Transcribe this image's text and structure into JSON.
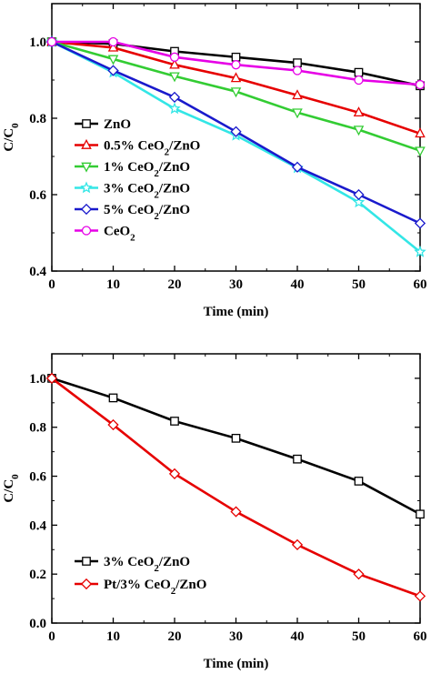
{
  "chart_data": [
    {
      "type": "line",
      "title": "",
      "xlabel": "Time (min)",
      "ylabel": "C/C",
      "ylabel_sub": "0",
      "xlim": [
        0,
        60
      ],
      "ylim": [
        0.4,
        1.1
      ],
      "xticks": [
        "0",
        "10",
        "20",
        "30",
        "40",
        "50",
        "60"
      ],
      "yticks": [
        "0.4",
        "0.6",
        "0.8",
        "1.0"
      ],
      "x": [
        0,
        10,
        20,
        30,
        40,
        50,
        60
      ],
      "grid": false,
      "legend_position": "bottom-left",
      "series": [
        {
          "name": "ZnO",
          "name_main": "ZnO",
          "name_sub": "",
          "name_tail": "",
          "color": "#000000",
          "marker": "square",
          "values": [
            1.0,
            0.995,
            0.975,
            0.96,
            0.945,
            0.92,
            0.885
          ]
        },
        {
          "name": "0.5% CeO2/ZnO",
          "name_main": "0.5% CeO",
          "name_sub": "2",
          "name_tail": "/ZnO",
          "color": "#e60000",
          "marker": "triangle-up",
          "values": [
            1.0,
            0.985,
            0.94,
            0.905,
            0.86,
            0.815,
            0.76
          ]
        },
        {
          "name": "1% CeO2/ZnO",
          "name_main": "1% CeO",
          "name_sub": "2",
          "name_tail": "/ZnO",
          "color": "#33cc33",
          "marker": "triangle-down",
          "values": [
            1.0,
            0.955,
            0.91,
            0.87,
            0.815,
            0.77,
            0.715
          ]
        },
        {
          "name": "3% CeO2/ZnO",
          "name_main": "3% CeO",
          "name_sub": "2",
          "name_tail": "/ZnO",
          "color": "#33e6e6",
          "marker": "star",
          "values": [
            1.0,
            0.92,
            0.825,
            0.755,
            0.67,
            0.58,
            0.45
          ]
        },
        {
          "name": "5% CeO2/ZnO",
          "name_main": "5% CeO",
          "name_sub": "2",
          "name_tail": "/ZnO",
          "color": "#1a1acc",
          "marker": "diamond",
          "values": [
            1.0,
            0.925,
            0.855,
            0.765,
            0.672,
            0.6,
            0.525
          ]
        },
        {
          "name": "CeO2",
          "name_main": "CeO",
          "name_sub": "2",
          "name_tail": "",
          "color": "#e600e6",
          "marker": "circle",
          "values": [
            1.0,
            1.0,
            0.96,
            0.94,
            0.925,
            0.9,
            0.888
          ]
        }
      ]
    },
    {
      "type": "line",
      "title": "",
      "xlabel": "Time (min)",
      "ylabel": "C/C",
      "ylabel_sub": "0",
      "xlim": [
        0,
        60
      ],
      "ylim": [
        0.0,
        1.1
      ],
      "xticks": [
        "0",
        "10",
        "20",
        "30",
        "40",
        "50",
        "60"
      ],
      "yticks": [
        "0.0",
        "0.2",
        "0.4",
        "0.6",
        "0.8",
        "1.0"
      ],
      "x": [
        0,
        10,
        20,
        30,
        40,
        50,
        60
      ],
      "grid": false,
      "legend_position": "bottom-left",
      "series": [
        {
          "name": "3% CeO2/ZnO",
          "name_main": "3% CeO",
          "name_sub": "2",
          "name_tail": "/ZnO",
          "color": "#000000",
          "marker": "square",
          "values": [
            1.0,
            0.92,
            0.825,
            0.755,
            0.67,
            0.58,
            0.445
          ]
        },
        {
          "name": "Pt/3% CeO2/ZnO",
          "name_main": "Pt/3% CeO",
          "name_sub": "2",
          "name_tail": "/ZnO",
          "color": "#e60000",
          "marker": "diamond",
          "values": [
            1.0,
            0.81,
            0.61,
            0.455,
            0.32,
            0.2,
            0.11
          ]
        }
      ]
    }
  ]
}
